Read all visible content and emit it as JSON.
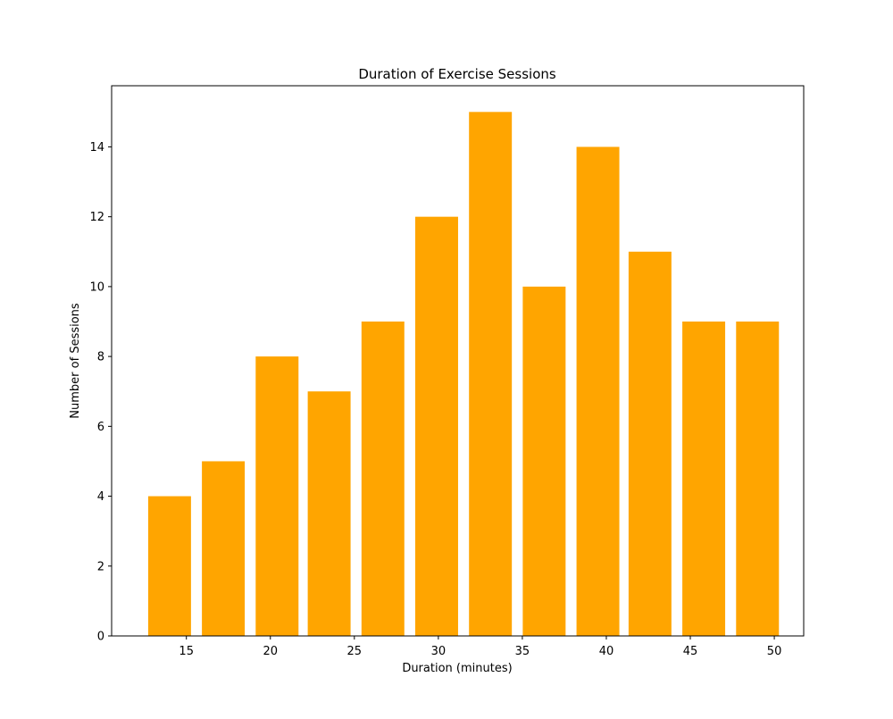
{
  "chart_data": {
    "type": "bar",
    "title": "Duration of Exercise Sessions",
    "xlabel": "Duration (minutes)",
    "ylabel": "Number of Sessions",
    "x": [
      14.0,
      17.2,
      20.4,
      23.5,
      26.7,
      29.9,
      33.1,
      36.3,
      39.5,
      42.6,
      45.8,
      49.0
    ],
    "values": [
      4,
      5,
      8,
      7,
      9,
      12,
      15,
      10,
      14,
      11,
      9,
      9
    ],
    "bar_width": 2.55,
    "xlim": [
      10.55,
      51.75
    ],
    "ylim": [
      0,
      15.75
    ],
    "xticks": [
      15,
      20,
      25,
      30,
      35,
      40,
      45,
      50
    ],
    "yticks": [
      0,
      2,
      4,
      6,
      8,
      10,
      12,
      14
    ],
    "bar_color": "#FFA500",
    "grid": false,
    "legend": "none"
  }
}
